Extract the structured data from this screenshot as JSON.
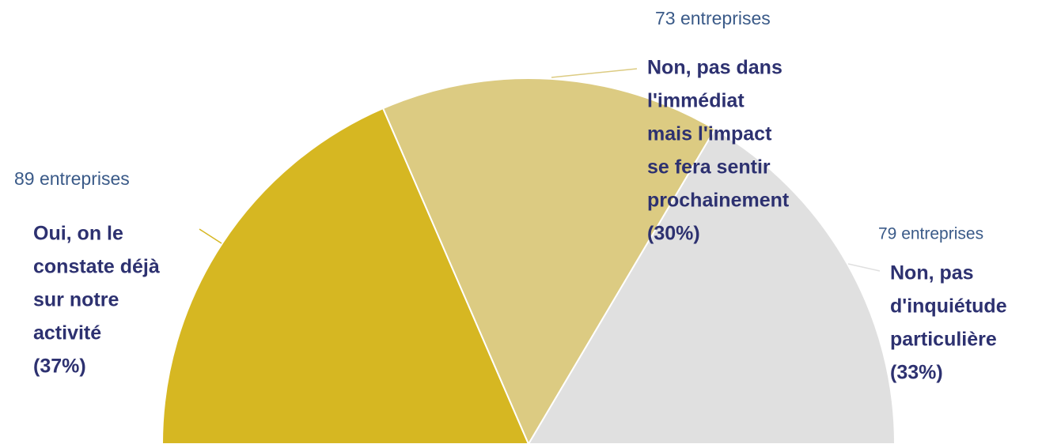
{
  "chart_data": {
    "type": "half-pie",
    "categories": [
      [
        "Oui, on le",
        "constate déjà",
        "sur notre",
        "activité"
      ],
      [
        "Non, pas dans",
        "l'immédiat",
        "mais l'impact",
        "se fera sentir",
        "prochainement"
      ],
      [
        "Non, pas",
        "d'inquiétude",
        "particulière"
      ]
    ],
    "values": [
      37,
      30,
      33
    ],
    "value_labels": [
      "(37%)",
      "(30%)",
      "(33%)"
    ],
    "counts": [
      89,
      73,
      79
    ],
    "count_labels": [
      "89 entreprises",
      "73 entreprises",
      "79 entreprises"
    ],
    "colors": [
      "#d6b722",
      "#dccb82",
      "#e0e0e0"
    ]
  }
}
